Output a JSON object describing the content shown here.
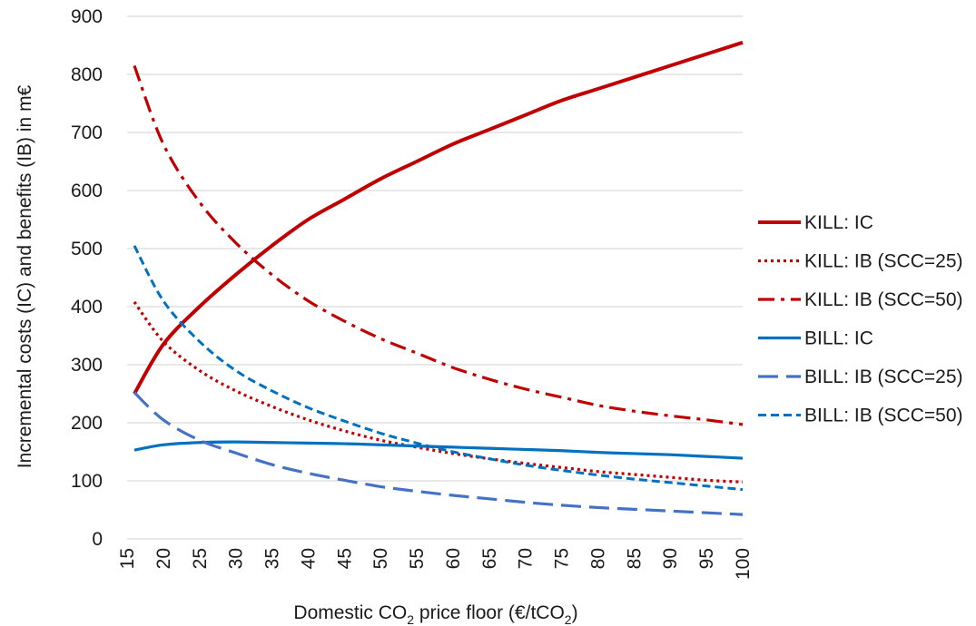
{
  "chart_data": {
    "type": "line",
    "xlabel": {
      "pre": "Domestic CO",
      "sub1": "2",
      "mid": " price floor (€/tCO",
      "sub2": "2",
      "post": ")"
    },
    "ylabel": "Incremental costs (IC) and benefits (IB) in m€",
    "ylim": [
      0,
      900
    ],
    "xlim": [
      15,
      100
    ],
    "y_ticks": [
      "0",
      "100",
      "200",
      "300",
      "400",
      "500",
      "600",
      "700",
      "800",
      "900"
    ],
    "x_ticks": [
      "15",
      "20",
      "25",
      "30",
      "35",
      "40",
      "45",
      "50",
      "55",
      "60",
      "65",
      "70",
      "75",
      "80",
      "85",
      "90",
      "95",
      "100"
    ],
    "grid": "horizontal",
    "legend_position": "right",
    "x": [
      16,
      20,
      25,
      30,
      35,
      40,
      45,
      50,
      55,
      60,
      65,
      70,
      75,
      80,
      85,
      90,
      95,
      100
    ],
    "series": [
      {
        "name": "KILL: IC",
        "color": "#c00000",
        "style": "solid-thick",
        "values": [
          250,
          335,
          400,
          455,
          505,
          550,
          585,
          620,
          650,
          680,
          705,
          730,
          755,
          775,
          795,
          815,
          835,
          855
        ]
      },
      {
        "name": "KILL: IB (SCC=25)",
        "color": "#c00000",
        "style": "dotted",
        "values": [
          408,
          340,
          290,
          255,
          228,
          205,
          186,
          170,
          158,
          147,
          138,
          130,
          123,
          116,
          111,
          106,
          101,
          98
        ]
      },
      {
        "name": "KILL: IB (SCC=50)",
        "color": "#c00000",
        "style": "dashdot",
        "values": [
          815,
          680,
          580,
          510,
          455,
          410,
          375,
          345,
          320,
          295,
          275,
          258,
          244,
          230,
          220,
          212,
          205,
          197
        ]
      },
      {
        "name": "BILL: IC",
        "color": "#0070c0",
        "style": "solid",
        "values": [
          153,
          162,
          166,
          167,
          166,
          165,
          164,
          162,
          160,
          158,
          156,
          154,
          152,
          149,
          147,
          145,
          142,
          139
        ]
      },
      {
        "name": "BILL: IB (SCC=25)",
        "color": "#4472c4",
        "style": "longdash",
        "values": [
          252,
          205,
          170,
          148,
          128,
          113,
          101,
          90,
          82,
          75,
          69,
          63,
          58,
          54,
          51,
          48,
          45,
          42
        ]
      },
      {
        "name": "BILL: IB (SCC=50)",
        "color": "#0070c0",
        "style": "shortdash",
        "values": [
          505,
          410,
          340,
          290,
          255,
          226,
          203,
          182,
          165,
          150,
          138,
          127,
          118,
          110,
          103,
          97,
          91,
          85
        ]
      }
    ]
  }
}
